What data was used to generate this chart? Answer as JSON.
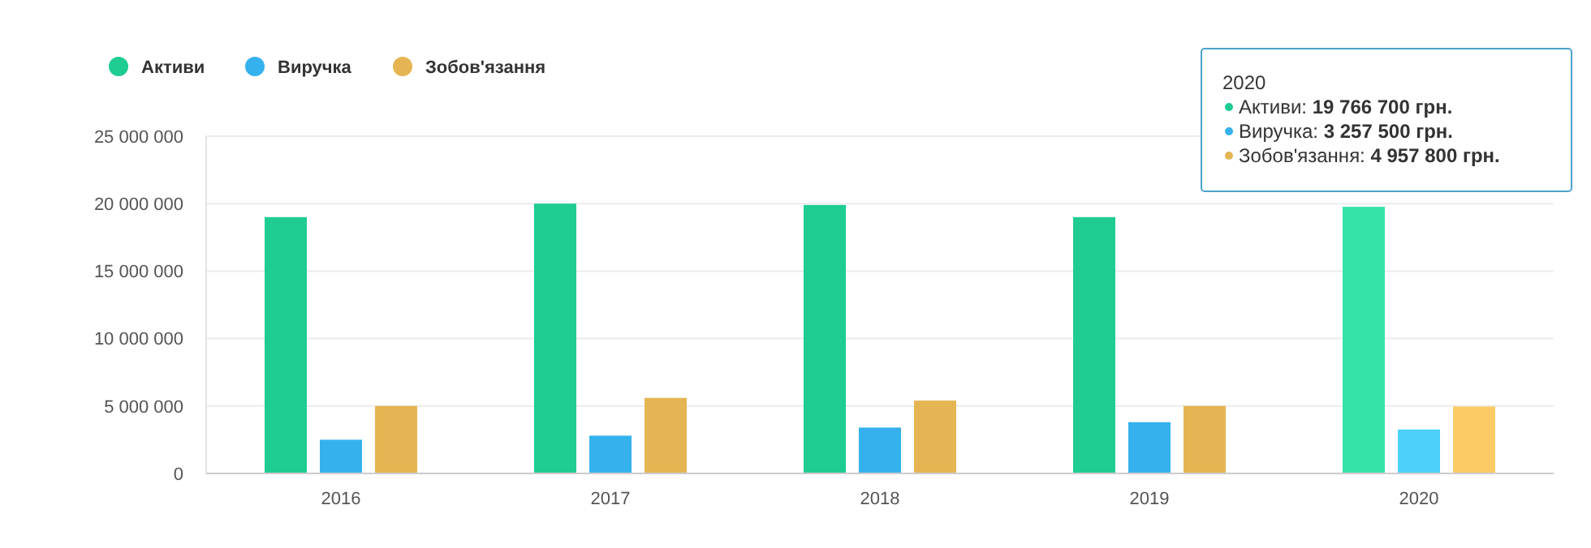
{
  "chart_data": {
    "type": "bar",
    "categories": [
      "2016",
      "2017",
      "2018",
      "2019",
      "2020"
    ],
    "series": [
      {
        "name": "Активи",
        "color": "#1fcc91",
        "colors": [
          "#1fcc91",
          "#1fcc91",
          "#1fcc91",
          "#1fcc91",
          "#35e3a8"
        ],
        "values": [
          19000000,
          20000000,
          19900000,
          19000000,
          19766700
        ]
      },
      {
        "name": "Виручка",
        "color": "#35b2ee",
        "colors": [
          "#35b2ee",
          "#35b2ee",
          "#35b2ee",
          "#35b2ee",
          "#4dd0fa"
        ],
        "values": [
          2500000,
          2800000,
          3400000,
          3800000,
          3257500
        ]
      },
      {
        "name": "Зобов'язання",
        "color": "#e5b553",
        "colors": [
          "#e5b553",
          "#e5b553",
          "#e5b553",
          "#e5b553",
          "#fdcb65"
        ],
        "values": [
          5000000,
          5600000,
          5400000,
          5000000,
          4957800
        ]
      }
    ],
    "ylim": [
      0,
      25000000
    ],
    "yticks": [
      {
        "value": 0,
        "label": "0"
      },
      {
        "value": 5000000,
        "label": "5 000 000"
      },
      {
        "value": 10000000,
        "label": "10 000 000"
      },
      {
        "value": 15000000,
        "label": "15 000 000"
      },
      {
        "value": 20000000,
        "label": "20 000 000"
      },
      {
        "value": 25000000,
        "label": "25 000 000"
      }
    ],
    "grid": "y",
    "legend": "top left",
    "annotations": [
      "2020",
      "Активи: 19 766 700 грн.",
      "Виручка: 3 257 500 грн.",
      "Зобов'язання: 4 957 800 грн."
    ]
  }
}
